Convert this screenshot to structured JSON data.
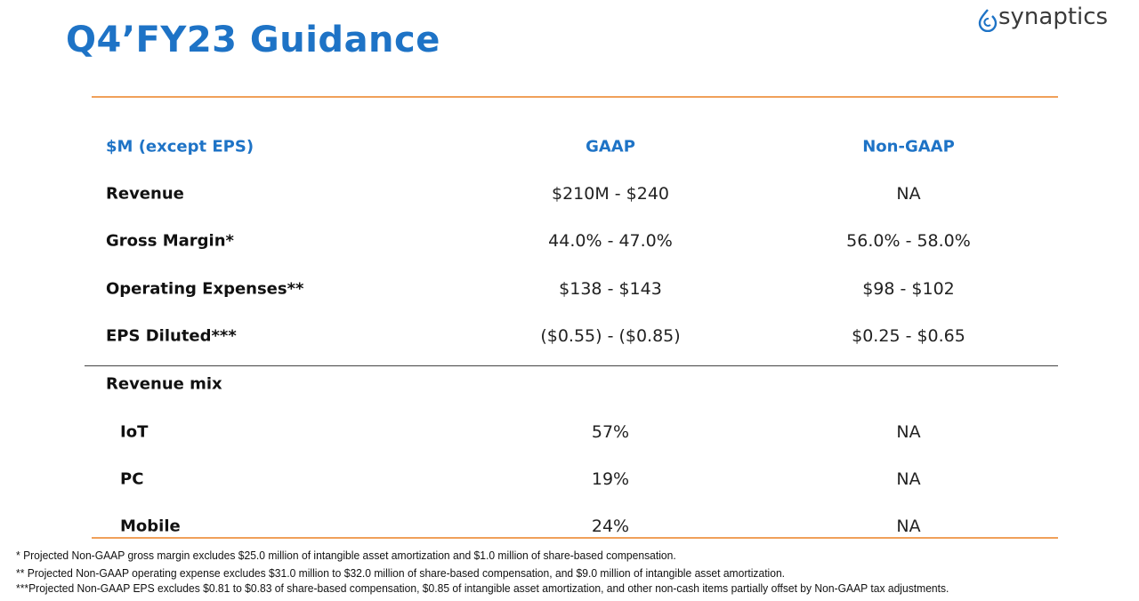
{
  "header": {
    "title": "Q4’FY23 Guidance",
    "logo": "synaptics"
  },
  "table": {
    "columns": [
      "$M (except EPS)",
      "GAAP",
      "Non-GAAP"
    ],
    "rows": [
      [
        "Revenue",
        "$210M - $240",
        "NA"
      ],
      [
        "Gross Margin*",
        "44.0% - 47.0%",
        "56.0% - 58.0%"
      ],
      [
        "Operating Expenses**",
        "$138 - $143",
        "$98 - $102"
      ],
      [
        "EPS Diluted***",
        "($0.55) - ($0.85)",
        "$0.25 - $0.65"
      ]
    ],
    "section": "Revenue mix",
    "section_rows": [
      [
        "IoT",
        "57%",
        "NA"
      ],
      [
        "PC",
        "19%",
        "NA"
      ],
      [
        "Mobile",
        "24%",
        "NA"
      ]
    ]
  },
  "footnotes": [
    "*  Projected Non-GAAP gross margin excludes $25.0 million of intangible asset amortization and $1.0 million of share-based compensation.",
    "** Projected Non-GAAP operating expense excludes $31.0 million to $32.0 million of share-based compensation, and $9.0 million of intangible asset amortization.",
    "***Projected Non-GAAP EPS excludes $0.81 to $0.83 of share-based compensation, $0.85 of intangible asset amortization, and other non-cash items partially offset by Non-GAAP tax adjustments."
  ]
}
